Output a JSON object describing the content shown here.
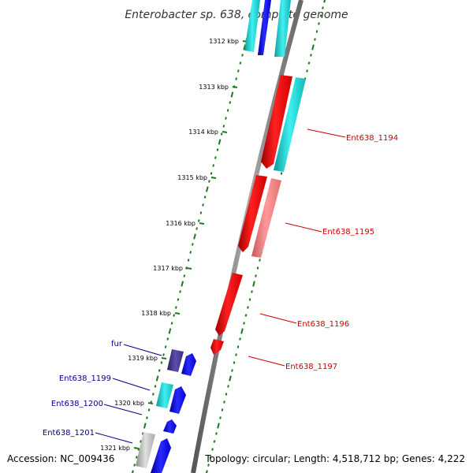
{
  "title": "Enterobacter sp. 638, complete genome",
  "footer": {
    "accession": "Accession: NC_009436",
    "topology": "Topology: circular; Length: 4,518,712 bp; Genes: 4,222"
  },
  "colors": {
    "backbone": "#8c8c8c",
    "tick": "#1a7a1a",
    "forward_label": "#00008b",
    "reverse_label": "#cc0000",
    "red": "#ff0000",
    "cyan": "#1ad6d6",
    "blue": "#0000ff",
    "salmon": "#f08080",
    "slate": "#483d8b",
    "gray": "#bbbbbb"
  },
  "ticks": [
    {
      "label": "1312 kbp"
    },
    {
      "label": "1313 kbp"
    },
    {
      "label": "1314 kbp"
    },
    {
      "label": "1315 kbp"
    },
    {
      "label": "1316 kbp"
    },
    {
      "label": "1317 kbp"
    },
    {
      "label": "1318 kbp"
    },
    {
      "label": "1319 kbp"
    },
    {
      "label": "1320 kbp"
    },
    {
      "label": "1321 kbp"
    }
  ],
  "gene_labels": [
    {
      "text": "Ent638_1194",
      "strand": "reverse"
    },
    {
      "text": "Ent638_1195",
      "strand": "reverse"
    },
    {
      "text": "Ent638_1196",
      "strand": "reverse"
    },
    {
      "text": "Ent638_1197",
      "strand": "reverse"
    },
    {
      "text": "fur",
      "strand": "forward"
    },
    {
      "text": "Ent638_1199",
      "strand": "forward"
    },
    {
      "text": "Ent638_1200",
      "strand": "forward"
    },
    {
      "text": "Ent638_1201",
      "strand": "forward"
    }
  ]
}
